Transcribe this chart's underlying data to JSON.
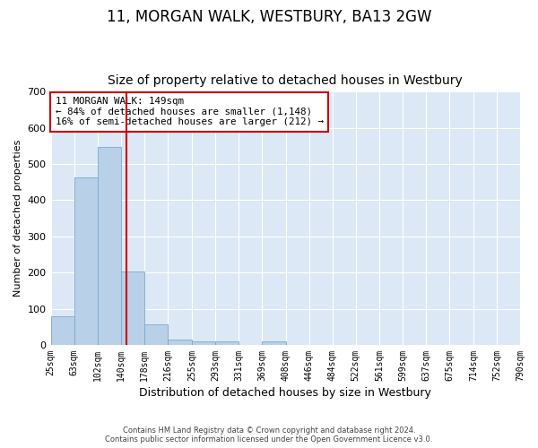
{
  "title": "11, MORGAN WALK, WESTBURY, BA13 2GW",
  "subtitle": "Size of property relative to detached houses in Westbury",
  "xlabel": "Distribution of detached houses by size in Westbury",
  "ylabel": "Number of detached properties",
  "footer1": "Contains HM Land Registry data © Crown copyright and database right 2024.",
  "footer2": "Contains public sector information licensed under the Open Government Licence v3.0.",
  "annotation_line1": "11 MORGAN WALK: 149sqm",
  "annotation_line2": "← 84% of detached houses are smaller (1,148)",
  "annotation_line3": "16% of semi-detached houses are larger (212) →",
  "bar_color": "#b8d0e8",
  "bar_edge_color": "#7aaace",
  "bar_left_edges": [
    25,
    63,
    102,
    140,
    178,
    216,
    255,
    293,
    331,
    369,
    408,
    446,
    484,
    522,
    561,
    599,
    637,
    675,
    714,
    752
  ],
  "bar_widths": [
    38,
    39,
    38,
    38,
    38,
    39,
    38,
    38,
    38,
    39,
    38,
    38,
    38,
    39,
    38,
    38,
    38,
    39,
    38,
    38
  ],
  "bar_heights": [
    78,
    462,
    548,
    204,
    57,
    15,
    10,
    10,
    0,
    9,
    0,
    0,
    0,
    0,
    0,
    0,
    0,
    0,
    0,
    0
  ],
  "tick_labels": [
    "25sqm",
    "63sqm",
    "102sqm",
    "140sqm",
    "178sqm",
    "216sqm",
    "255sqm",
    "293sqm",
    "331sqm",
    "369sqm",
    "408sqm",
    "446sqm",
    "484sqm",
    "522sqm",
    "561sqm",
    "599sqm",
    "637sqm",
    "675sqm",
    "714sqm",
    "752sqm",
    "790sqm"
  ],
  "red_line_x": 149,
  "ylim": [
    0,
    700
  ],
  "xlim": [
    25,
    790
  ],
  "fig_background": "#ffffff",
  "plot_background": "#dce8f5",
  "grid_color": "#ffffff",
  "title_fontsize": 12,
  "subtitle_fontsize": 10,
  "annotation_box_facecolor": "#ffffff",
  "annotation_box_edgecolor": "#cc0000",
  "red_line_color": "#cc0000",
  "ylabel_fontsize": 8,
  "xlabel_fontsize": 9,
  "tick_fontsize": 7,
  "ytick_fontsize": 8
}
